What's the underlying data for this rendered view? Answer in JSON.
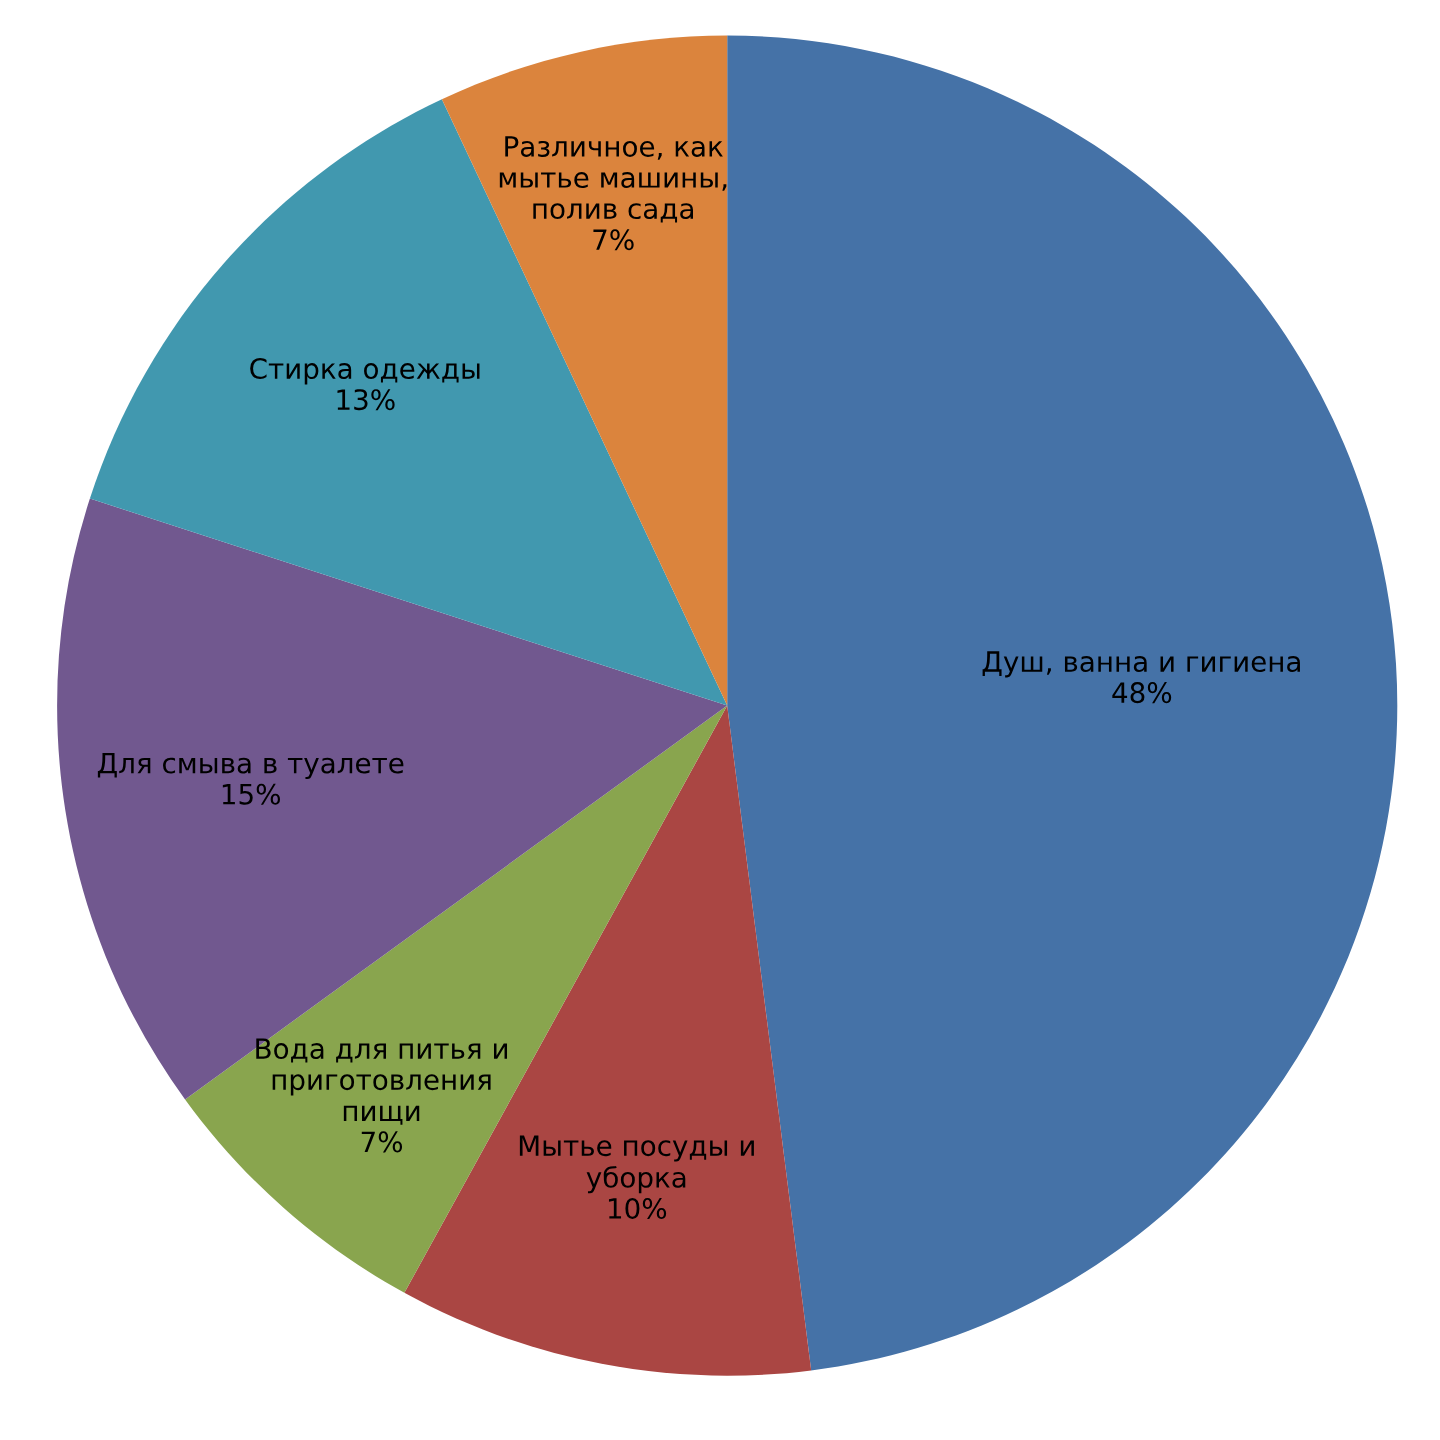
{
  "chart_data": {
    "type": "pie",
    "categories": [
      "Душ, ванна и гигиена",
      "Мытье посуды и\nуборка",
      "Вода для питья и\nприготовления\nпищи",
      "Для смыва в туалете",
      "Стирка одежды",
      "Различное, как\nмытье машины,\nполив сада"
    ],
    "values": [
      48,
      10,
      7,
      15,
      13,
      7
    ],
    "value_labels": [
      "48%",
      "10%",
      "7%",
      "15%",
      "13%",
      "7%"
    ],
    "colors": [
      "#4572a7",
      "#aa4643",
      "#89a54e",
      "#71588f",
      "#4198af",
      "#db843d"
    ]
  }
}
